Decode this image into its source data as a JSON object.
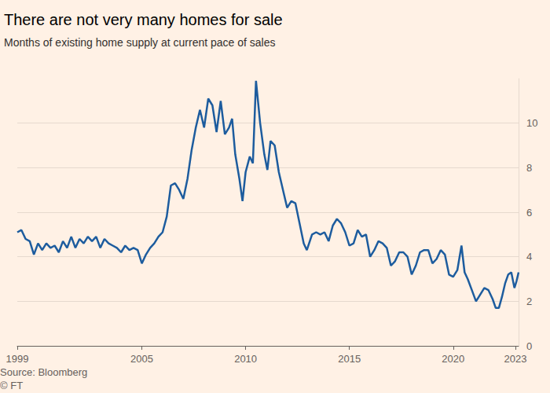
{
  "chart_data": {
    "type": "line",
    "title": "There are not very many homes for sale",
    "subtitle": "Months of existing home supply at current pace of sales",
    "source": "Source: Bloomberg",
    "copyright": "© FT",
    "color": "#1d5c9e",
    "grid": true,
    "xlim": [
      1999,
      2023.15
    ],
    "xticks": [
      1999,
      2005,
      2010,
      2015,
      2020,
      2023
    ],
    "ylim": [
      0,
      12
    ],
    "yticks": [
      0,
      2,
      4,
      6,
      8,
      10
    ],
    "x": [
      1999.0,
      1999.2,
      1999.4,
      1999.6,
      1999.8,
      2000.0,
      2000.2,
      2000.4,
      2000.6,
      2000.8,
      2001.0,
      2001.2,
      2001.4,
      2001.6,
      2001.8,
      2002.0,
      2002.2,
      2002.4,
      2002.6,
      2002.8,
      2003.0,
      2003.2,
      2003.4,
      2003.6,
      2003.8,
      2004.0,
      2004.2,
      2004.4,
      2004.6,
      2004.8,
      2005.0,
      2005.2,
      2005.4,
      2005.6,
      2005.8,
      2006.0,
      2006.2,
      2006.4,
      2006.6,
      2006.8,
      2007.0,
      2007.2,
      2007.4,
      2007.6,
      2007.8,
      2008.0,
      2008.2,
      2008.4,
      2008.6,
      2008.8,
      2009.0,
      2009.2,
      2009.35,
      2009.5,
      2009.7,
      2009.85,
      2010.0,
      2010.2,
      2010.35,
      2010.5,
      2010.7,
      2010.9,
      2011.05,
      2011.2,
      2011.4,
      2011.6,
      2011.8,
      2012.0,
      2012.2,
      2012.4,
      2012.6,
      2012.8,
      2012.95,
      2013.2,
      2013.4,
      2013.6,
      2013.8,
      2014.0,
      2014.2,
      2014.4,
      2014.6,
      2014.8,
      2015.0,
      2015.2,
      2015.4,
      2015.6,
      2015.8,
      2016.0,
      2016.2,
      2016.4,
      2016.6,
      2016.8,
      2017.0,
      2017.2,
      2017.4,
      2017.6,
      2017.8,
      2018.0,
      2018.2,
      2018.4,
      2018.6,
      2018.8,
      2019.0,
      2019.2,
      2019.4,
      2019.6,
      2019.8,
      2020.0,
      2020.2,
      2020.4,
      2020.55,
      2020.7,
      2020.9,
      2021.1,
      2021.3,
      2021.5,
      2021.7,
      2021.9,
      2022.05,
      2022.2,
      2022.35,
      2022.5,
      2022.65,
      2022.8,
      2022.95,
      2023.05,
      2023.15
    ],
    "values": [
      5.1,
      5.2,
      4.8,
      4.7,
      4.1,
      4.6,
      4.3,
      4.6,
      4.4,
      4.5,
      4.2,
      4.7,
      4.4,
      4.9,
      4.4,
      4.8,
      4.6,
      4.9,
      4.7,
      4.9,
      4.4,
      4.8,
      4.6,
      4.5,
      4.4,
      4.2,
      4.5,
      4.3,
      4.4,
      4.3,
      3.7,
      4.1,
      4.4,
      4.6,
      4.9,
      5.1,
      5.8,
      7.2,
      7.3,
      7.0,
      6.6,
      7.5,
      8.8,
      9.8,
      10.6,
      9.8,
      11.1,
      10.8,
      9.6,
      11.0,
      9.5,
      9.8,
      10.2,
      8.6,
      7.5,
      6.5,
      7.8,
      8.5,
      8.2,
      11.9,
      10.0,
      8.6,
      7.9,
      9.2,
      9.0,
      7.8,
      7.0,
      6.2,
      6.5,
      6.4,
      5.5,
      4.6,
      4.3,
      5.0,
      5.1,
      5.0,
      5.1,
      4.7,
      5.4,
      5.7,
      5.5,
      5.1,
      4.5,
      4.6,
      5.2,
      4.9,
      5.0,
      4.0,
      4.3,
      4.7,
      4.6,
      4.4,
      3.6,
      3.8,
      4.2,
      4.2,
      4.0,
      3.2,
      3.6,
      4.2,
      4.3,
      4.3,
      3.7,
      3.9,
      4.3,
      4.1,
      3.2,
      3.1,
      3.4,
      4.5,
      3.3,
      3.0,
      2.5,
      2.0,
      2.3,
      2.6,
      2.5,
      2.1,
      1.7,
      1.7,
      2.2,
      2.8,
      3.2,
      3.3,
      2.6,
      2.9,
      3.3
    ]
  }
}
